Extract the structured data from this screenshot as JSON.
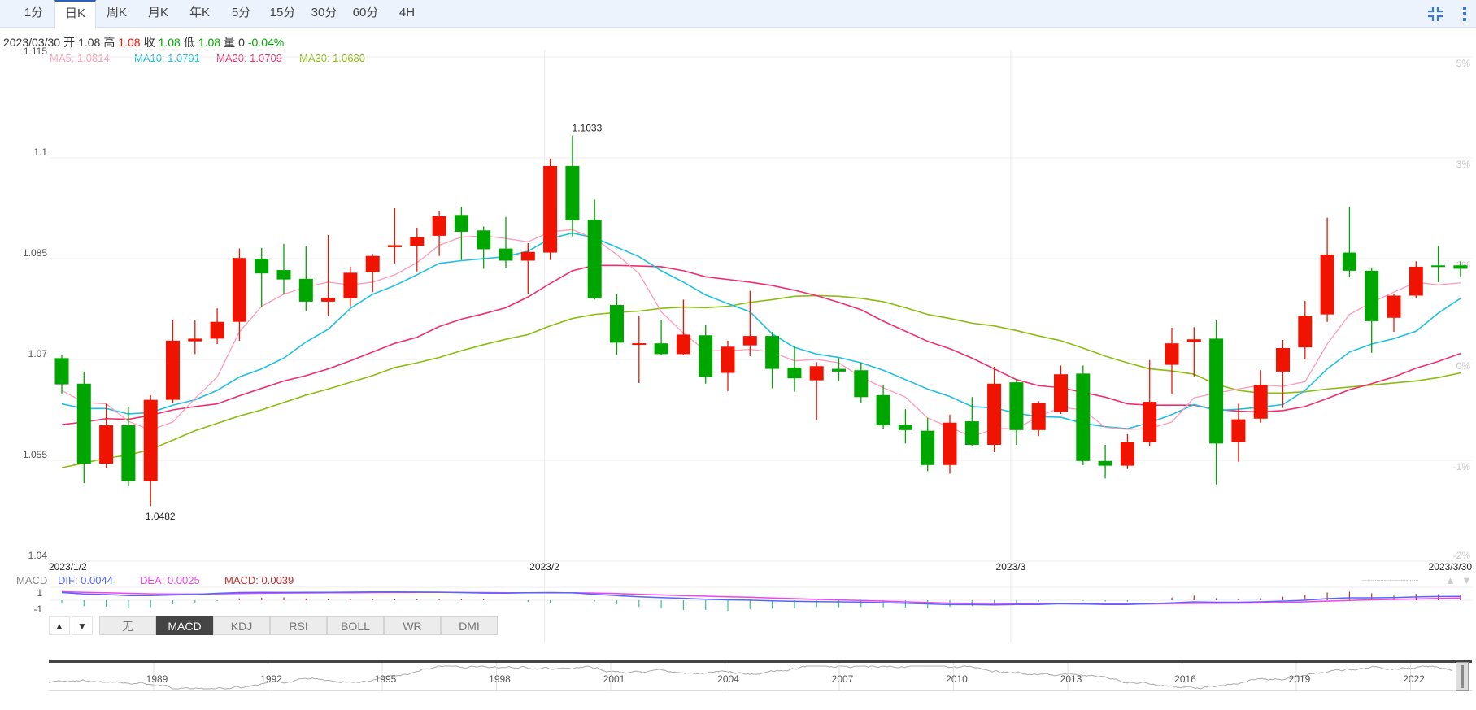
{
  "period_tabs": [
    "1分",
    "日K",
    "周K",
    "月K",
    "年K",
    "5分",
    "15分",
    "30分",
    "60分",
    "4H"
  ],
  "active_period": "日K",
  "toolbar_icons": [
    "compress-icon",
    "more-vertical-icon"
  ],
  "info": {
    "date": "2023/03/30",
    "open_label": "开",
    "open": "1.08",
    "high_label": "高",
    "high": "1.08",
    "close_label": "收",
    "close": "1.08",
    "low_label": "低",
    "low": "1.08",
    "volume_label": "量",
    "volume": "0",
    "change": "-0.04%"
  },
  "ma_legend": {
    "ma5": "MA5: 1.0814",
    "ma10": "MA10: 1.0791",
    "ma20": "MA20: 1.0709",
    "ma30": "MA30: 1.0680"
  },
  "colors": {
    "up": "#f01400",
    "down": "#00a600",
    "ma5": "#ff9cb8",
    "ma10": "#1ec0e0",
    "ma20": "#ef2f6c",
    "ma30": "#8cbc10",
    "dif": "#5566ff",
    "dea": "#ee44ee",
    "macd": "#c03030",
    "hist_down": "#33c090"
  },
  "chart_data": {
    "type": "candlestick",
    "y_ticks": [
      "1.115",
      "1.1",
      "1.085",
      "1.07",
      "1.055",
      "1.04"
    ],
    "y_tick_values": [
      1.115,
      1.1,
      1.085,
      1.07,
      1.055,
      1.04
    ],
    "ylim": [
      1.04,
      1.115
    ],
    "pct_ticks": [
      "5%",
      "3%",
      "2%",
      "0%",
      "-1%",
      "-2%"
    ],
    "x_labels": [
      "2023/1/2",
      "2023/2",
      "2023/3",
      "2023/3/30"
    ],
    "x_label_index": [
      0,
      22,
      43,
      63
    ],
    "grid": true,
    "max_label": "1.1033",
    "min_label": "1.0482",
    "candles_ohlc": [
      [
        1.0702,
        1.0707,
        1.0648,
        1.0663
      ],
      [
        1.0664,
        1.0682,
        1.0516,
        1.0545
      ],
      [
        1.0545,
        1.0634,
        1.0538,
        1.0602
      ],
      [
        1.0602,
        1.063,
        1.0512,
        1.0519
      ],
      [
        1.0519,
        1.0647,
        1.0482,
        1.064
      ],
      [
        1.064,
        1.0759,
        1.0635,
        1.0728
      ],
      [
        1.0727,
        1.0758,
        1.0708,
        1.0731
      ],
      [
        1.0731,
        1.0776,
        1.0723,
        1.0756
      ],
      [
        1.0756,
        1.0865,
        1.0728,
        1.0851
      ],
      [
        1.085,
        1.0866,
        1.0778,
        1.0828
      ],
      [
        1.0833,
        1.0872,
        1.0798,
        1.0819
      ],
      [
        1.082,
        1.0868,
        1.0772,
        1.0786
      ],
      [
        1.0786,
        1.0885,
        1.0764,
        1.0792
      ],
      [
        1.0791,
        1.0838,
        1.0779,
        1.0829
      ],
      [
        1.083,
        1.0857,
        1.08,
        1.0854
      ],
      [
        1.0867,
        1.0925,
        1.0843,
        1.087
      ],
      [
        1.0869,
        1.0896,
        1.0831,
        1.0882
      ],
      [
        1.0884,
        1.0921,
        1.0854,
        1.0913
      ],
      [
        1.0915,
        1.0927,
        1.0848,
        1.089
      ],
      [
        1.0892,
        1.0898,
        1.0835,
        1.0864
      ],
      [
        1.0865,
        1.0912,
        1.0836,
        1.0847
      ],
      [
        1.0847,
        1.0873,
        1.0798,
        1.086
      ],
      [
        1.0859,
        1.0999,
        1.0848,
        1.0988
      ],
      [
        1.0988,
        1.1033,
        1.0883,
        1.0907
      ],
      [
        1.0908,
        1.0938,
        1.0789,
        1.0791
      ],
      [
        1.0781,
        1.0797,
        1.0707,
        1.0725
      ],
      [
        1.0724,
        1.0765,
        1.0665,
        1.07241
      ],
      [
        1.0724,
        1.0759,
        1.0707,
        1.0708
      ],
      [
        1.0708,
        1.0789,
        1.0706,
        1.0737
      ],
      [
        1.0736,
        1.0751,
        1.0664,
        1.0674
      ],
      [
        1.068,
        1.0728,
        1.0653,
        1.0719
      ],
      [
        1.0721,
        1.0802,
        1.0705,
        1.0735
      ],
      [
        1.0735,
        1.0741,
        1.0657,
        1.0686
      ],
      [
        1.0688,
        1.072,
        1.0652,
        1.0672
      ],
      [
        1.0669,
        1.0696,
        1.061,
        1.069
      ],
      [
        1.0686,
        1.0702,
        1.0668,
        1.0682
      ],
      [
        1.0684,
        1.0695,
        1.0635,
        1.0644
      ],
      [
        1.0647,
        1.0662,
        1.0597,
        1.0602
      ],
      [
        1.0603,
        1.0626,
        1.0575,
        1.0595
      ],
      [
        1.0594,
        1.0613,
        1.0534,
        1.0543
      ],
      [
        1.0543,
        1.0618,
        1.053,
        1.0606
      ],
      [
        1.0608,
        1.0644,
        1.0571,
        1.0573
      ],
      [
        1.0573,
        1.0689,
        1.0562,
        1.0664
      ],
      [
        1.0666,
        1.067,
        1.0573,
        1.0595
      ],
      [
        1.0595,
        1.0638,
        1.0586,
        1.0635
      ],
      [
        1.0622,
        1.0691,
        1.0619,
        1.0678
      ],
      [
        1.0679,
        1.0691,
        1.0543,
        1.0549
      ],
      [
        1.0549,
        1.0573,
        1.0523,
        1.0542
      ],
      [
        1.0542,
        1.0589,
        1.0537,
        1.0577
      ],
      [
        1.0577,
        1.0699,
        1.0571,
        1.0637
      ],
      [
        1.0692,
        1.0747,
        1.0648,
        1.0724
      ],
      [
        1.0726,
        1.0748,
        1.0675,
        1.073
      ],
      [
        1.0731,
        1.0758,
        1.0514,
        1.0575
      ],
      [
        1.0577,
        1.0634,
        1.0548,
        1.0611
      ],
      [
        1.0612,
        1.0684,
        1.0606,
        1.0662
      ],
      [
        1.0682,
        1.0729,
        1.0628,
        1.0717
      ],
      [
        1.0718,
        1.0787,
        1.07,
        1.0765
      ],
      [
        1.0767,
        1.0911,
        1.0756,
        1.0856
      ],
      [
        1.0859,
        1.0927,
        1.0822,
        1.0832
      ],
      [
        1.0832,
        1.0837,
        1.071,
        1.0757
      ],
      [
        1.0762,
        1.0797,
        1.0741,
        1.0795
      ],
      [
        1.0795,
        1.0846,
        1.0792,
        1.0838
      ],
      [
        1.084,
        1.0869,
        1.0815,
        1.0839
      ],
      [
        1.084,
        1.0846,
        1.0822,
        1.0835
      ]
    ],
    "ma5": [
      1.0654,
      1.0636,
      1.0634,
      1.0608,
      1.0595,
      1.0607,
      1.0642,
      1.0674,
      1.0741,
      1.0779,
      1.0797,
      1.0808,
      1.0815,
      1.0811,
      1.0815,
      1.0826,
      1.0844,
      1.087,
      1.0882,
      1.0884,
      1.088,
      1.0875,
      1.089,
      1.0893,
      1.088,
      1.0856,
      1.0828,
      1.0771,
      1.0739,
      1.0713,
      1.0713,
      1.0715,
      1.0711,
      1.0698,
      1.07,
      1.0695,
      1.0674,
      1.0658,
      1.0644,
      1.0613,
      1.0599,
      1.0585,
      1.0597,
      1.0597,
      1.0615,
      1.0629,
      1.0625,
      1.0599,
      1.0596,
      1.0597,
      1.0607,
      1.0643,
      1.065,
      1.0656,
      1.0662,
      1.066,
      1.0667,
      1.0723,
      1.0767,
      1.0785,
      1.08,
      1.0815,
      1.0811,
      1.0814
    ],
    "ma10": [
      1.0634,
      1.0627,
      1.0627,
      1.0619,
      1.0621,
      1.0632,
      1.064,
      1.0654,
      1.0674,
      1.0686,
      1.0702,
      1.0726,
      1.0745,
      1.0776,
      1.0797,
      1.081,
      1.0826,
      1.0843,
      1.0847,
      1.085,
      1.0853,
      1.0861,
      1.088,
      1.0888,
      1.0881,
      1.0867,
      1.0853,
      1.0832,
      1.0815,
      1.0796,
      1.0783,
      1.0771,
      1.0738,
      1.0718,
      1.0708,
      1.0703,
      1.0695,
      1.0684,
      1.067,
      1.0656,
      1.0645,
      1.063,
      1.0628,
      1.062,
      1.0615,
      1.0614,
      1.0605,
      1.06,
      1.0597,
      1.0606,
      1.0618,
      1.0633,
      1.0624,
      1.0626,
      1.0629,
      1.0633,
      1.0654,
      1.0686,
      1.0711,
      1.0723,
      1.0731,
      1.0742,
      1.0769,
      1.0791
    ],
    "ma20": [
      1.0603,
      1.0607,
      1.0612,
      1.0611,
      1.0617,
      1.0625,
      1.063,
      1.0634,
      1.0646,
      1.0657,
      1.0668,
      1.0676,
      1.0686,
      1.0698,
      1.0711,
      1.0724,
      1.0733,
      1.0749,
      1.076,
      1.0768,
      1.0777,
      1.0793,
      1.0813,
      1.0832,
      1.084,
      1.084,
      1.0839,
      1.0838,
      1.0832,
      1.0823,
      1.0819,
      1.0815,
      1.081,
      1.0803,
      1.0795,
      1.0785,
      1.0774,
      1.0757,
      1.0742,
      1.0727,
      1.0716,
      1.0702,
      1.0686,
      1.067,
      1.0661,
      1.0658,
      1.0651,
      1.0644,
      1.0634,
      1.0632,
      1.0632,
      1.0632,
      1.0626,
      1.0623,
      1.0622,
      1.0624,
      1.063,
      1.0642,
      1.0655,
      1.0664,
      1.0674,
      1.0687,
      1.0697,
      1.0709
    ],
    "ma30": [
      1.0539,
      1.0546,
      1.0553,
      1.0558,
      1.0566,
      1.058,
      1.0594,
      1.0605,
      1.0616,
      1.0625,
      1.0636,
      1.0647,
      1.0656,
      1.0666,
      1.0676,
      1.0688,
      1.0695,
      1.0703,
      1.0713,
      1.0722,
      1.073,
      1.0737,
      1.075,
      1.0761,
      1.0767,
      1.077,
      1.0772,
      1.0776,
      1.0778,
      1.0777,
      1.0779,
      1.0785,
      1.0789,
      1.0794,
      1.0795,
      1.0794,
      1.0791,
      1.0786,
      1.0777,
      1.0767,
      1.0761,
      1.0754,
      1.075,
      1.0743,
      1.0735,
      1.0728,
      1.0717,
      1.0705,
      1.0695,
      1.0686,
      1.0683,
      1.0678,
      1.0663,
      1.0654,
      1.065,
      1.065,
      1.0652,
      1.0656,
      1.0659,
      1.0662,
      1.0665,
      1.0668,
      1.0673,
      1.068
    ]
  },
  "macd": {
    "label": "MACD",
    "dif_label": "DIF: 0.0044",
    "dea_label": "DEA: 0.0025",
    "macd_label": "MACD: 0.0039",
    "y_ticks": [
      "1",
      "-1"
    ],
    "dif": [
      0.95,
      0.78,
      0.71,
      0.57,
      0.58,
      0.65,
      0.71,
      0.85,
      0.95,
      0.97,
      0.96,
      0.97,
      0.98,
      1.0,
      1.02,
      1.02,
      1.01,
      1.0,
      0.95,
      0.89,
      0.87,
      0.92,
      0.95,
      0.91,
      0.74,
      0.57,
      0.43,
      0.33,
      0.24,
      0.13,
      0.05,
      0.01,
      -0.08,
      -0.14,
      -0.17,
      -0.2,
      -0.22,
      -0.3,
      -0.38,
      -0.45,
      -0.54,
      -0.54,
      -0.58,
      -0.52,
      -0.52,
      -0.43,
      -0.46,
      -0.52,
      -0.52,
      -0.43,
      -0.33,
      -0.2,
      -0.25,
      -0.25,
      -0.2,
      -0.11,
      0.0,
      0.2,
      0.3,
      0.3,
      0.33,
      0.41,
      0.46,
      0.48
    ],
    "dea": [
      1.05,
      0.98,
      0.92,
      0.85,
      0.79,
      0.76,
      0.76,
      0.79,
      0.83,
      0.86,
      0.89,
      0.9,
      0.92,
      0.93,
      0.95,
      0.96,
      0.97,
      0.97,
      0.96,
      0.95,
      0.93,
      0.93,
      0.93,
      0.93,
      0.89,
      0.82,
      0.74,
      0.65,
      0.58,
      0.5,
      0.43,
      0.37,
      0.27,
      0.2,
      0.11,
      0.04,
      -0.02,
      -0.11,
      -0.2,
      -0.27,
      -0.36,
      -0.39,
      -0.41,
      -0.43,
      -0.43,
      -0.44,
      -0.47,
      -0.48,
      -0.48,
      -0.46,
      -0.41,
      -0.39,
      -0.38,
      -0.36,
      -0.34,
      -0.27,
      -0.2,
      -0.11,
      -0.02,
      0.05,
      0.11,
      0.16,
      0.22,
      0.27
    ],
    "hist": [
      -0.27,
      -0.46,
      -0.5,
      -0.63,
      -0.54,
      -0.3,
      -0.18,
      -0.07,
      0.14,
      0.2,
      0.22,
      0.14,
      0.08,
      0.08,
      0.08,
      0.09,
      0.09,
      0.1,
      0.1,
      0.08,
      0.0,
      -0.14,
      -0.18,
      0.0,
      -0.08,
      -0.3,
      -0.52,
      -0.6,
      -0.76,
      -0.74,
      -0.82,
      -0.68,
      -0.65,
      -0.63,
      -0.52,
      -0.54,
      -0.52,
      -0.54,
      -0.57,
      -0.61,
      -0.5,
      -0.43,
      -0.27,
      -0.2,
      -0.1,
      0.0,
      -0.05,
      -0.1,
      -0.1,
      0.0,
      0.2,
      0.35,
      0.16,
      0.13,
      0.16,
      0.27,
      0.4,
      0.6,
      0.65,
      0.54,
      0.35,
      0.49,
      0.46,
      0.41
    ]
  },
  "indicator_tabs": [
    "无",
    "MACD",
    "KDJ",
    "RSI",
    "BOLL",
    "WR",
    "DMI"
  ],
  "active_indicator": "MACD",
  "scroll_buttons": [
    "▲",
    "▼"
  ],
  "navigator_years": [
    "1989",
    "1992",
    "1995",
    "1998",
    "2001",
    "2004",
    "2007",
    "2010",
    "2013",
    "2016",
    "2019",
    "2022"
  ]
}
